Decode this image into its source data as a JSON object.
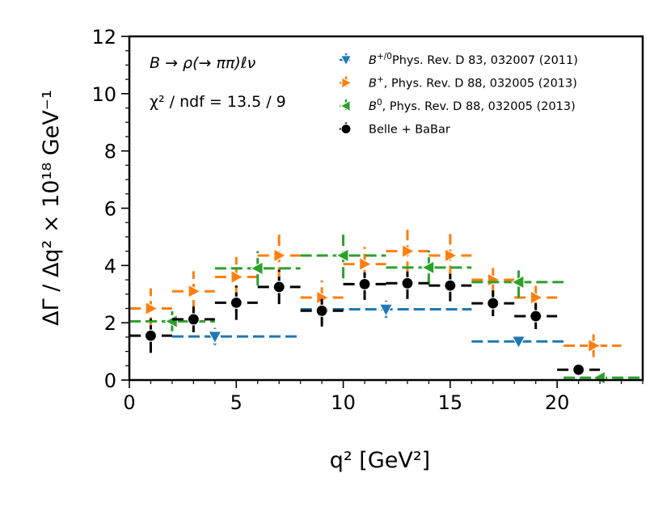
{
  "chart_data": {
    "type": "scatter",
    "xlabel": "q² [GeV²]",
    "ylabel": "ΔΓ / Δq² × 10¹⁸ GeV⁻¹",
    "xlim": [
      0,
      24
    ],
    "ylim": [
      0,
      12
    ],
    "x_ticks": [
      "0",
      "5",
      "10",
      "15",
      "20"
    ],
    "y_ticks": [
      "0",
      "2",
      "4",
      "6",
      "8",
      "10",
      "12"
    ],
    "annotations": {
      "process": "B → ρ(→ ππ)ℓν",
      "chi2": "χ² / ndf = 13.5 / 9"
    },
    "series": [
      {
        "name": "B+/0, Phys. Rev. D 83, 032007 (2011)",
        "legend_label": "Phys. Rev. D 83, 032007 (2011)",
        "legend_symbol": "B",
        "legend_sup": "+/0",
        "color": "#1f77b4",
        "marker": "triangle-down",
        "points": [
          {
            "x": 4,
            "xlo": 2,
            "xhi": 8,
            "y": 1.52,
            "yerr": 0.3
          },
          {
            "x": 12,
            "xlo": 8,
            "xhi": 16,
            "y": 2.47,
            "yerr": 0.3
          },
          {
            "x": 18.2,
            "xlo": 16,
            "xhi": 20.3,
            "y": 1.35,
            "yerr": 0.22
          }
        ]
      },
      {
        "name": "B+, Phys. Rev. D 88, 032005 (2013)",
        "legend_label": ", Phys. Rev. D 88, 032005 (2013)",
        "legend_symbol": "B",
        "legend_sup": "+",
        "color": "#ff7f0e",
        "marker": "triangle-right",
        "points": [
          {
            "x": 1,
            "xlo": 0,
            "xhi": 2,
            "y": 2.5,
            "yerr": 0.7
          },
          {
            "x": 3,
            "xlo": 2,
            "xhi": 4,
            "y": 3.1,
            "yerr": 0.7
          },
          {
            "x": 5,
            "xlo": 4,
            "xhi": 6,
            "y": 3.6,
            "yerr": 0.7
          },
          {
            "x": 7,
            "xlo": 6,
            "xhi": 8,
            "y": 4.35,
            "yerr": 0.8
          },
          {
            "x": 9,
            "xlo": 8,
            "xhi": 10,
            "y": 2.88,
            "yerr": 0.6
          },
          {
            "x": 11,
            "xlo": 10,
            "xhi": 12,
            "y": 4.05,
            "yerr": 0.6
          },
          {
            "x": 13,
            "xlo": 12,
            "xhi": 14,
            "y": 4.5,
            "yerr": 0.75
          },
          {
            "x": 15,
            "xlo": 14,
            "xhi": 16,
            "y": 4.35,
            "yerr": 0.75
          },
          {
            "x": 17,
            "xlo": 16,
            "xhi": 18,
            "y": 3.5,
            "yerr": 0.55
          },
          {
            "x": 19,
            "xlo": 18,
            "xhi": 20,
            "y": 2.88,
            "yerr": 0.55
          },
          {
            "x": 21.7,
            "xlo": 20.3,
            "xhi": 23,
            "y": 1.2,
            "yerr": 0.4
          }
        ]
      },
      {
        "name": "B0, Phys. Rev. D 88, 032005 (2013)",
        "legend_label": ", Phys. Rev. D 88, 032005 (2013)",
        "legend_symbol": "B",
        "legend_sup": "0",
        "color": "#2ca02c",
        "marker": "triangle-left",
        "points": [
          {
            "x": 2,
            "xlo": 0,
            "xhi": 4,
            "y": 2.05,
            "yerr": 0.35
          },
          {
            "x": 6,
            "xlo": 4,
            "xhi": 8,
            "y": 3.9,
            "yerr": 0.6
          },
          {
            "x": 10,
            "xlo": 8,
            "xhi": 12,
            "y": 4.35,
            "yerr": 0.8
          },
          {
            "x": 14,
            "xlo": 12,
            "xhi": 16,
            "y": 3.93,
            "yerr": 0.6
          },
          {
            "x": 18.2,
            "xlo": 16,
            "xhi": 20.3,
            "y": 3.42,
            "yerr": 0.55
          },
          {
            "x": 22,
            "xlo": 20.3,
            "xhi": 24,
            "y": 0.08,
            "yerr": 0.12
          }
        ]
      },
      {
        "name": "Belle + BaBar",
        "legend_label": "Belle + BaBar",
        "color": "#000000",
        "marker": "circle",
        "points": [
          {
            "x": 1,
            "xlo": 0,
            "xhi": 2,
            "y": 1.55,
            "yerr": 0.6
          },
          {
            "x": 3,
            "xlo": 2,
            "xhi": 4,
            "y": 2.12,
            "yerr": 0.45
          },
          {
            "x": 5,
            "xlo": 4,
            "xhi": 6,
            "y": 2.7,
            "yerr": 0.6
          },
          {
            "x": 7,
            "xlo": 6,
            "xhi": 8,
            "y": 3.25,
            "yerr": 0.6
          },
          {
            "x": 9,
            "xlo": 8,
            "xhi": 10,
            "y": 2.42,
            "yerr": 0.55
          },
          {
            "x": 11,
            "xlo": 10,
            "xhi": 12,
            "y": 3.35,
            "yerr": 0.55
          },
          {
            "x": 13,
            "xlo": 12,
            "xhi": 14,
            "y": 3.38,
            "yerr": 0.55
          },
          {
            "x": 15,
            "xlo": 14,
            "xhi": 16,
            "y": 3.3,
            "yerr": 0.55
          },
          {
            "x": 17,
            "xlo": 16,
            "xhi": 18,
            "y": 2.68,
            "yerr": 0.45
          },
          {
            "x": 19,
            "xlo": 18,
            "xhi": 20,
            "y": 2.23,
            "yerr": 0.45
          },
          {
            "x": 21,
            "xlo": 20,
            "xhi": 22,
            "y": 0.36,
            "yerr": 0.18
          }
        ]
      }
    ]
  }
}
